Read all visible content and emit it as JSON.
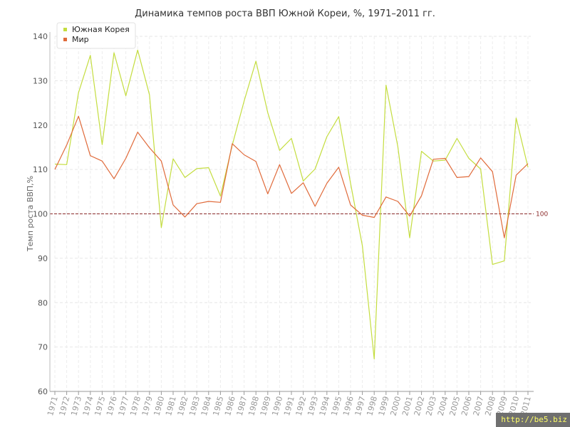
{
  "chart_data": {
    "type": "line",
    "title": "Динамика темпов роста ВВП Южной Кореи, %, 1971–2011 гг.",
    "xlabel": "",
    "ylabel": "Темп роста ВВП,%",
    "ylim": [
      60,
      140
    ],
    "yticks": [
      60,
      70,
      80,
      90,
      100,
      110,
      120,
      130,
      140
    ],
    "x": [
      "1971",
      "1972",
      "1973",
      "1974",
      "1975",
      "1976",
      "1977",
      "1978",
      "1979",
      "1980",
      "1981",
      "1982",
      "1983",
      "1984",
      "1985",
      "1986",
      "1987",
      "1988",
      "1989",
      "1990",
      "1991",
      "1992",
      "1993",
      "1994",
      "1995",
      "1996",
      "1997",
      "1998",
      "1999",
      "2000",
      "2001",
      "2002",
      "2003",
      "2004",
      "2005",
      "2006",
      "2007",
      "2008",
      "2009",
      "2010",
      "2011"
    ],
    "grid": true,
    "legend_position": "top-left",
    "reference_line": {
      "value": 100,
      "label": "100",
      "color": "#8b2a2a"
    },
    "series": [
      {
        "name": "Южная Корея",
        "color": "#c4dd3f",
        "values": [
          111.2,
          111.1,
          127.3,
          135.7,
          115.6,
          136.3,
          126.6,
          136.9,
          126.8,
          96.9,
          112.4,
          108.2,
          110.2,
          110.4,
          104.0,
          115.5,
          125.4,
          134.4,
          122.8,
          114.3,
          117.0,
          107.4,
          110.1,
          117.4,
          121.9,
          106.9,
          92.8,
          67.3,
          129.0,
          115.1,
          94.6,
          114.1,
          111.9,
          112.1,
          117.0,
          112.5,
          110.1,
          88.6,
          89.4,
          121.6,
          110.5
        ]
      },
      {
        "name": "Мир",
        "color": "#e06a3a",
        "values": [
          110.0,
          115.5,
          122.0,
          113.1,
          111.9,
          107.9,
          112.5,
          118.4,
          114.9,
          111.9,
          102.0,
          99.3,
          102.3,
          102.8,
          102.6,
          115.8,
          113.3,
          111.8,
          104.5,
          111.1,
          104.6,
          107.0,
          101.7,
          106.9,
          110.5,
          102.0,
          99.7,
          99.2,
          103.8,
          102.8,
          99.5,
          104.1,
          112.3,
          112.5,
          108.2,
          108.4,
          112.6,
          109.5,
          94.6,
          108.7,
          111.3
        ]
      }
    ]
  },
  "watermark": "http://be5.biz"
}
